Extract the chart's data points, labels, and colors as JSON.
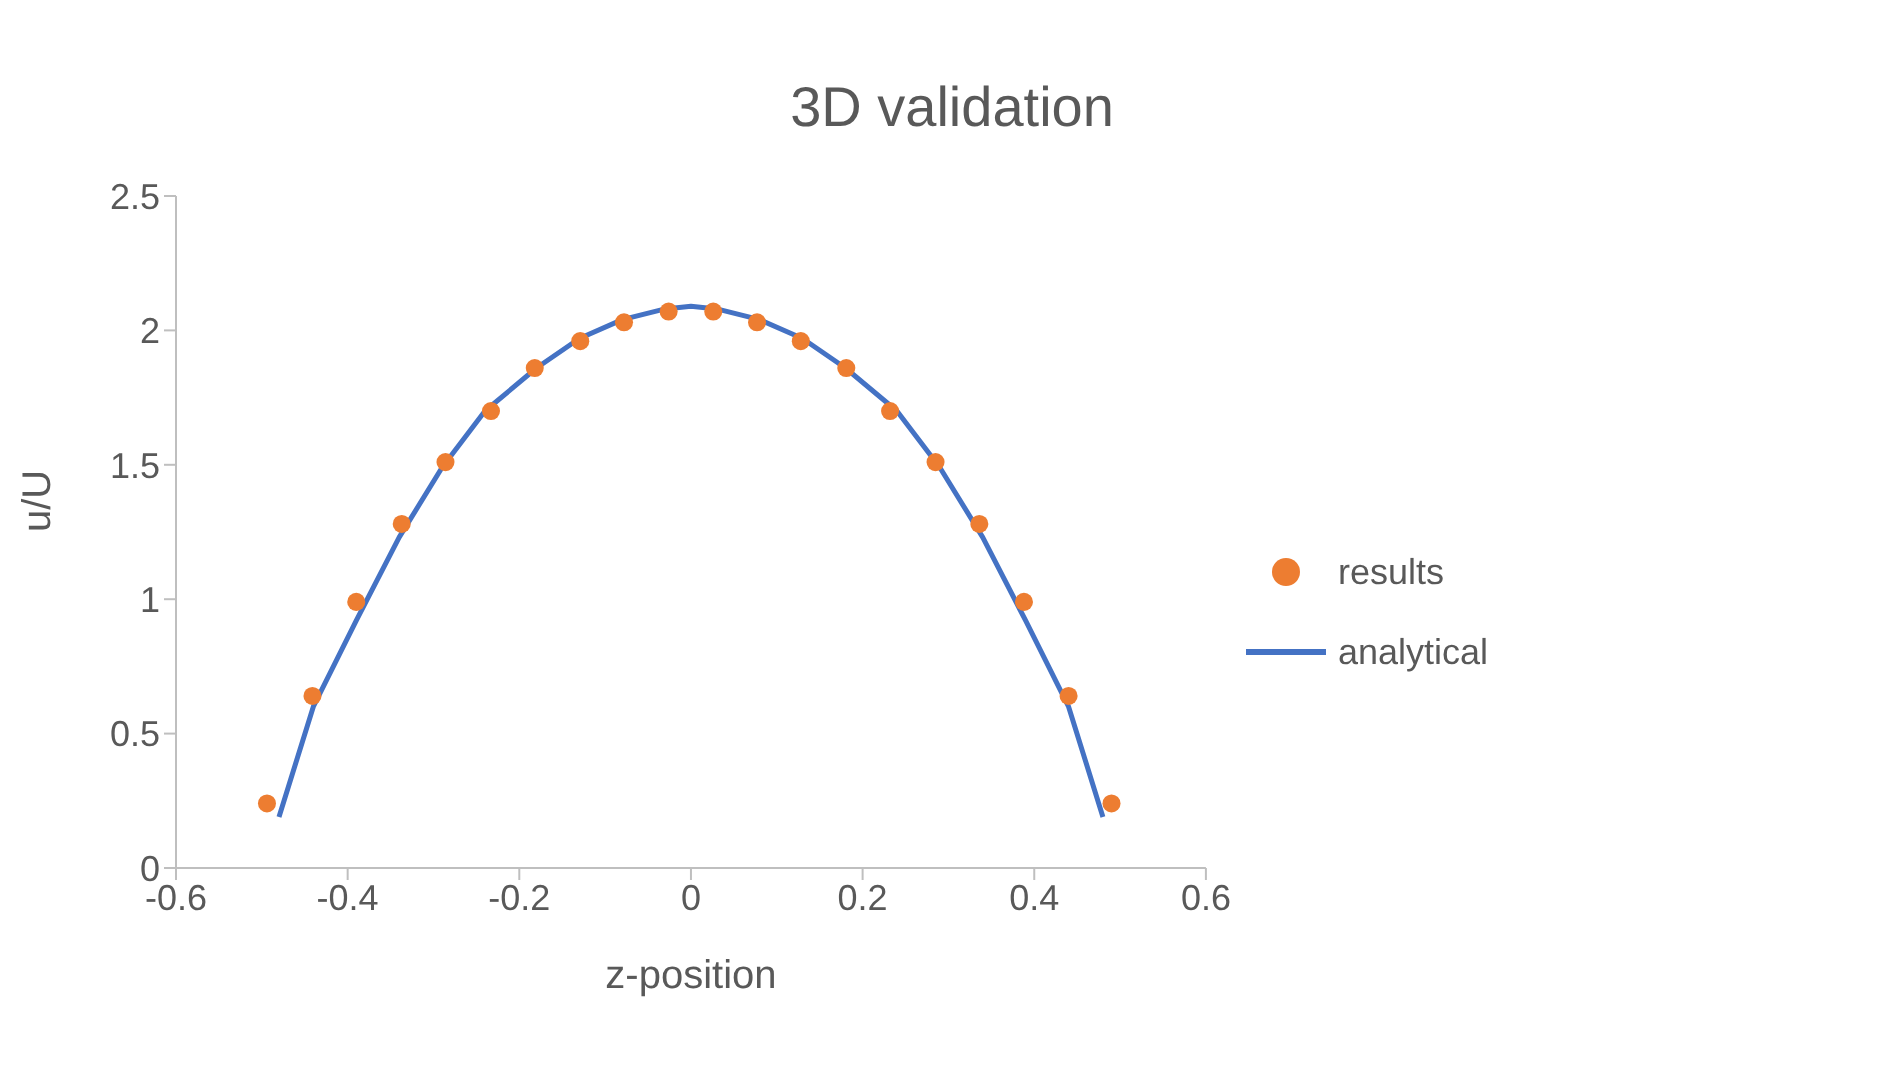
{
  "chart_data": {
    "type": "scatter",
    "title": "3D validation",
    "xlabel": "z-position",
    "ylabel": "u/U",
    "xlim": [
      -0.6,
      0.6
    ],
    "xticks": [
      -0.6,
      -0.4,
      -0.2,
      0,
      0.2,
      0.4,
      0.6
    ],
    "ylim": [
      0,
      2.5
    ],
    "yticks": [
      0,
      0.5,
      1,
      1.5,
      2,
      2.5
    ],
    "grid": false,
    "legend": "right",
    "series": [
      {
        "name": "results",
        "marker": "circle",
        "color": "#ed7d31",
        "x": [
          -0.494,
          -0.441,
          -0.39,
          -0.337,
          -0.286,
          -0.233,
          -0.182,
          -0.129,
          -0.078,
          -0.026,
          0.026,
          0.077,
          0.128,
          0.181,
          0.232,
          0.285,
          0.336,
          0.388,
          0.44,
          0.49
        ],
        "values": [
          0.24,
          0.64,
          0.99,
          1.28,
          1.51,
          1.7,
          1.86,
          1.96,
          2.03,
          2.07,
          2.07,
          2.03,
          1.96,
          1.86,
          1.7,
          1.51,
          1.28,
          0.99,
          0.64,
          0.24
        ]
      },
      {
        "name": "analytical",
        "type": "line",
        "marker": "none",
        "line_style": "solid",
        "color": "#4472c4",
        "x": [
          -0.48,
          -0.44,
          -0.39,
          -0.34,
          -0.29,
          -0.24,
          -0.18,
          -0.13,
          -0.08,
          -0.03,
          0,
          0.03,
          0.08,
          0.13,
          0.18,
          0.24,
          0.29,
          0.34,
          0.39,
          0.44,
          0.48
        ],
        "values": [
          0.19,
          0.6,
          0.92,
          1.23,
          1.49,
          1.7,
          1.86,
          1.97,
          2.04,
          2.08,
          2.09,
          2.08,
          2.04,
          1.97,
          1.86,
          1.7,
          1.49,
          1.23,
          0.92,
          0.6,
          0.19
        ]
      }
    ]
  }
}
